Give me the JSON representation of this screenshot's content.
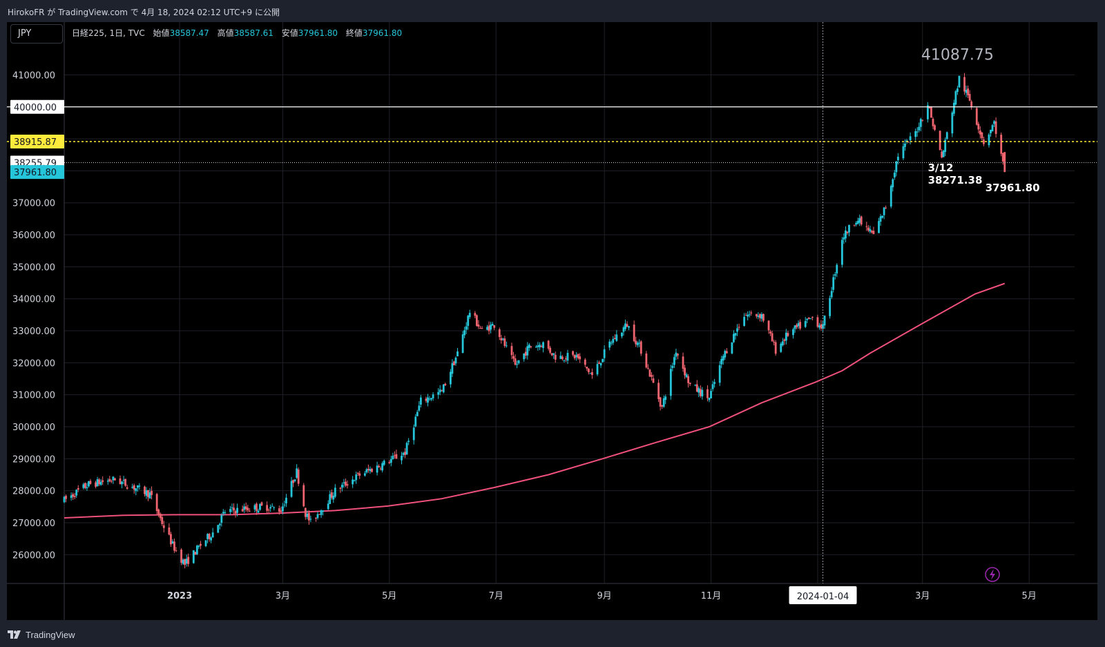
{
  "header": {
    "text": "HirokoFR が TradingView.com で 4月 18, 2024 02:12 UTC+9 に公開"
  },
  "footer": {
    "brand": "TradingView"
  },
  "currency": "JPY",
  "legend": {
    "symbol": "日経225, 1日, TVC",
    "open_label": "始値",
    "open": "38587.47",
    "high_label": "高値",
    "high": "38587.61",
    "low_label": "安値",
    "low": "37961.80",
    "close_label": "終値",
    "close": "37961.80"
  },
  "colors": {
    "up": "#26c6da",
    "down": "#f06470",
    "ma": "#f0507c",
    "hline_yellow": "#ffeb3b",
    "background": "#000000"
  },
  "chart_data": {
    "type": "candlestick",
    "symbol": "日経225",
    "interval": "1日",
    "ylim": [
      25100,
      42650
    ],
    "y_ticks": [
      "41000.00",
      "37000.00",
      "36000.00",
      "35000.00",
      "34000.00",
      "33000.00",
      "32000.00",
      "31000.00",
      "30000.00",
      "29000.00",
      "28000.00",
      "27000.00",
      "26000.00"
    ],
    "x_ticks": [
      {
        "label": "2023",
        "date": "2023-01-01"
      },
      {
        "label": "3月",
        "date": "2023-03-01"
      },
      {
        "label": "5月",
        "date": "2023-05-01"
      },
      {
        "label": "7月",
        "date": "2023-07-01"
      },
      {
        "label": "9月",
        "date": "2023-09-01"
      },
      {
        "label": "11月",
        "date": "2023-11-01"
      },
      {
        "label": "3月",
        "date": "2024-03-01"
      },
      {
        "label": "5月",
        "date": "2024-05-01"
      }
    ],
    "x_range": [
      "2022-10-27",
      "2024-05-27"
    ],
    "crosshair": {
      "date": "2024-01-04",
      "label": "2024-01-04"
    },
    "price_tags": [
      {
        "label": "40000.00",
        "value": 40000,
        "style": "white"
      },
      {
        "label": "38915.87",
        "value": 38915.87,
        "style": "yellow"
      },
      {
        "label": "38255.79",
        "value": 38255.79,
        "style": "plain"
      },
      {
        "label": "37961.80",
        "value": 37961.8,
        "style": "cyan"
      }
    ],
    "horizontal_lines": [
      {
        "value": 40000,
        "color": "#ffffff",
        "dash": "solid"
      },
      {
        "value": 38915.87,
        "color": "#ffeb3b",
        "dash": "dotted"
      },
      {
        "value": 38255.79,
        "color": "#d1d4dc",
        "dash": "dotted"
      }
    ],
    "annotations": [
      {
        "text": "41087.75",
        "date": "2024-03-21",
        "value": 41087.75,
        "style": "large-grey"
      },
      {
        "text": "3/12",
        "date": "2024-03-12",
        "value": 38271.38,
        "style": "white",
        "line": 1
      },
      {
        "text": "38271.38",
        "date": "2024-03-12",
        "value": 38271.38,
        "style": "white",
        "line": 2
      },
      {
        "text": "37961.80",
        "date": "2024-04-17",
        "value": 37961.8,
        "style": "white"
      }
    ],
    "series": [
      {
        "name": "日経225",
        "type": "candlestick",
        "anchors": [
          [
            "2022-10-27",
            27700
          ],
          [
            "2022-11-10",
            28200
          ],
          [
            "2022-11-25",
            28350
          ],
          [
            "2022-12-15",
            27900
          ],
          [
            "2022-12-22",
            27000
          ],
          [
            "2022-12-28",
            26300
          ],
          [
            "2023-01-04",
            25700
          ],
          [
            "2023-01-13",
            26300
          ],
          [
            "2023-01-20",
            26700
          ],
          [
            "2023-01-27",
            27350
          ],
          [
            "2023-02-10",
            27450
          ],
          [
            "2023-02-20",
            27500
          ],
          [
            "2023-02-28",
            27400
          ],
          [
            "2023-03-09",
            28600
          ],
          [
            "2023-03-14",
            27300
          ],
          [
            "2023-03-17",
            27000
          ],
          [
            "2023-03-31",
            28000
          ],
          [
            "2023-04-14",
            28500
          ],
          [
            "2023-04-28",
            28850
          ],
          [
            "2023-05-10",
            29200
          ],
          [
            "2023-05-19",
            30800
          ],
          [
            "2023-05-31",
            31100
          ],
          [
            "2023-06-09",
            32300
          ],
          [
            "2023-06-16",
            33600
          ],
          [
            "2023-06-23",
            33000
          ],
          [
            "2023-06-30",
            33200
          ],
          [
            "2023-07-12",
            31900
          ],
          [
            "2023-07-20",
            32500
          ],
          [
            "2023-07-28",
            32600
          ],
          [
            "2023-08-04",
            32200
          ],
          [
            "2023-08-16",
            32200
          ],
          [
            "2023-08-25",
            31600
          ],
          [
            "2023-09-04",
            32600
          ],
          [
            "2023-09-14",
            33200
          ],
          [
            "2023-09-22",
            32400
          ],
          [
            "2023-10-04",
            30600
          ],
          [
            "2023-10-12",
            32400
          ],
          [
            "2023-10-20",
            31300
          ],
          [
            "2023-10-31",
            30900
          ],
          [
            "2023-11-08",
            32200
          ],
          [
            "2023-11-20",
            33500
          ],
          [
            "2023-11-30",
            33500
          ],
          [
            "2023-12-08",
            32400
          ],
          [
            "2023-12-15",
            32900
          ],
          [
            "2023-12-29",
            33400
          ],
          [
            "2024-01-04",
            33100
          ],
          [
            "2024-01-10",
            34600
          ],
          [
            "2024-01-15",
            35900
          ],
          [
            "2024-01-23",
            36500
          ],
          [
            "2024-02-02",
            36000
          ],
          [
            "2024-02-09",
            36900
          ],
          [
            "2024-02-16",
            38500
          ],
          [
            "2024-02-26",
            39200
          ],
          [
            "2024-03-04",
            40100
          ],
          [
            "2024-03-12",
            38400
          ],
          [
            "2024-03-22",
            40900
          ],
          [
            "2024-03-28",
            40200
          ],
          [
            "2024-04-05",
            38900
          ],
          [
            "2024-04-11",
            39500
          ],
          [
            "2024-04-17",
            37961.8
          ]
        ]
      },
      {
        "name": "MA",
        "type": "line",
        "color": "#f0507c",
        "points": [
          [
            "2022-10-27",
            27150
          ],
          [
            "2022-11-30",
            27230
          ],
          [
            "2022-12-31",
            27250
          ],
          [
            "2023-01-31",
            27250
          ],
          [
            "2023-02-28",
            27300
          ],
          [
            "2023-03-31",
            27380
          ],
          [
            "2023-04-30",
            27520
          ],
          [
            "2023-05-31",
            27750
          ],
          [
            "2023-06-30",
            28100
          ],
          [
            "2023-07-31",
            28500
          ],
          [
            "2023-08-31",
            29000
          ],
          [
            "2023-09-30",
            29500
          ],
          [
            "2023-10-31",
            30000
          ],
          [
            "2023-11-30",
            30750
          ],
          [
            "2023-12-31",
            31400
          ],
          [
            "2024-01-15",
            31750
          ],
          [
            "2024-01-31",
            32300
          ],
          [
            "2024-02-29",
            33200
          ],
          [
            "2024-03-31",
            34150
          ],
          [
            "2024-04-17",
            34480
          ]
        ]
      }
    ]
  }
}
